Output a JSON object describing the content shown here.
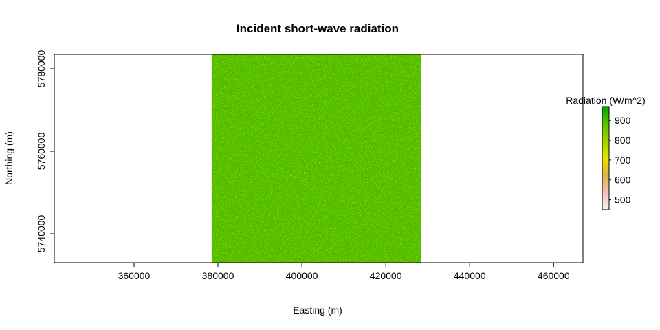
{
  "chart_data": {
    "type": "heatmap",
    "title": "Incident short-wave radiation",
    "xlabel": "Easting (m)",
    "ylabel": "Northing (m)",
    "xlim": [
      341000,
      467000
    ],
    "ylim": [
      5733000,
      5783500
    ],
    "xticks": [
      360000,
      380000,
      400000,
      420000,
      440000,
      460000
    ],
    "xtick_labels": [
      "360000",
      "380000",
      "400000",
      "420000",
      "440000",
      "460000"
    ],
    "yticks": [
      5740000,
      5760000,
      5780000
    ],
    "ytick_labels": [
      "5740000",
      "5760000",
      "5780000"
    ],
    "raster_extent": {
      "xmin": 378500,
      "xmax": 428500,
      "ymin": 5733000,
      "ymax": 5783500
    },
    "dominant_value": 900,
    "legend": {
      "title": "Radiation (W/m^2)",
      "placement": "right",
      "range": [
        450,
        970
      ],
      "ticks": [
        500,
        600,
        700,
        800,
        900
      ],
      "tick_labels": [
        "500",
        "600",
        "700",
        "800",
        "900"
      ],
      "colors": [
        "#f2f2f2",
        "#edc6b4",
        "#e1b044",
        "#e6e600",
        "#9fd400",
        "#5ec300",
        "#00a600"
      ]
    },
    "grid": false
  }
}
